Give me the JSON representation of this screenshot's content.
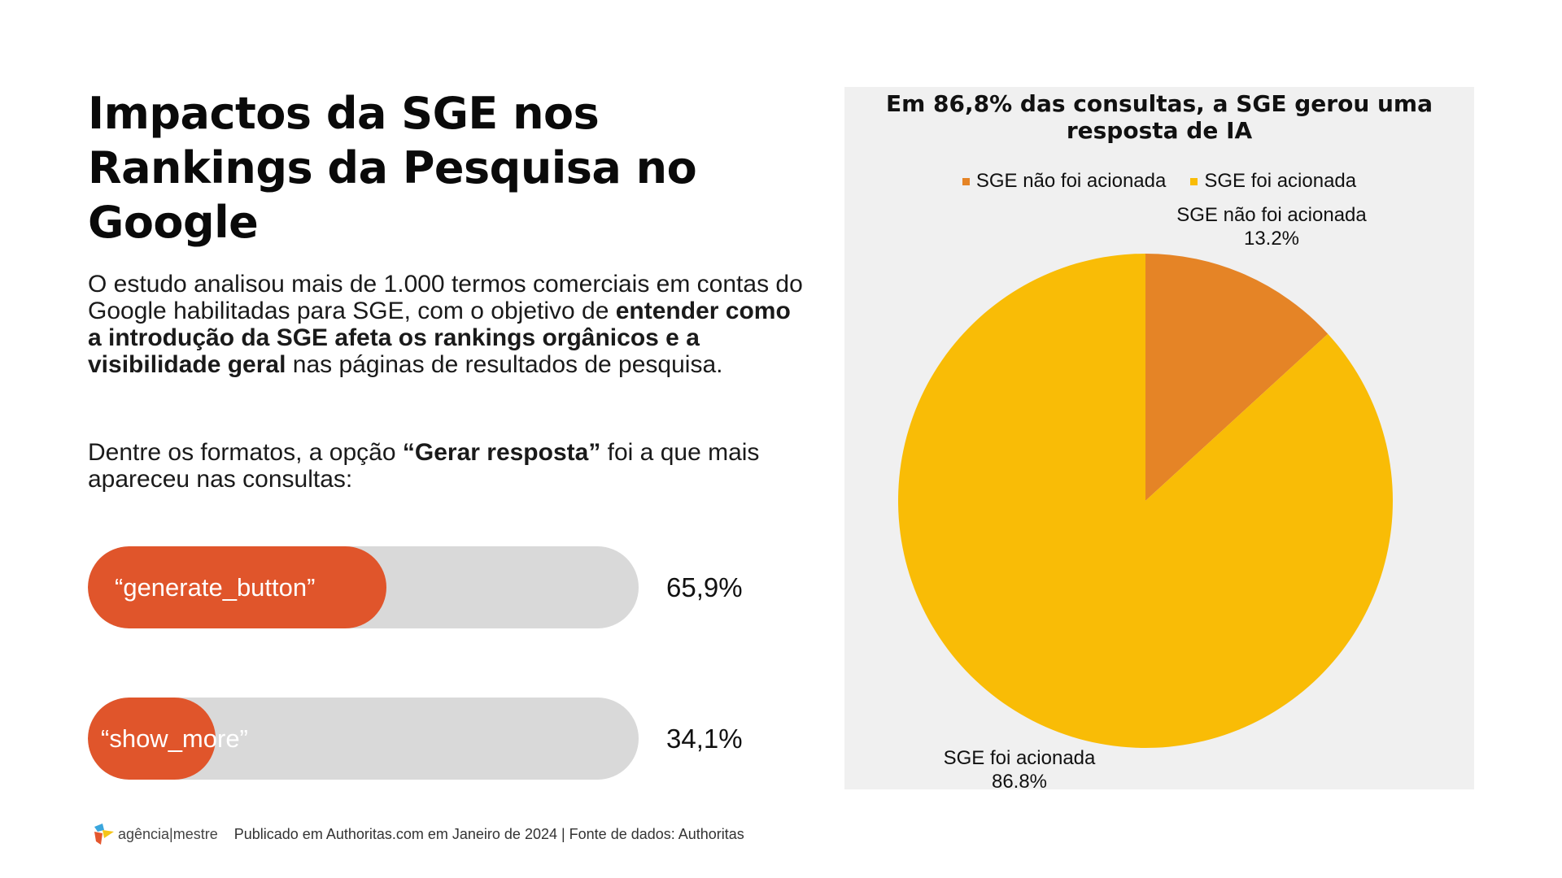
{
  "header": {
    "title": "Impactos da SGE nos Rankings da Pesquisa no Google"
  },
  "intro": {
    "part1": "O estudo analisou mais de 1.000 termos comerciais em contas do Google habilitadas para SGE, com o objetivo de ",
    "bold": "entender como a introdução da SGE afeta os rankings orgânicos e a visibilidade geral",
    "part2": " nas páginas de resultados de pesquisa."
  },
  "formats": {
    "part1": "Dentre os formatos, a opção ",
    "bold": "“Gerar resposta”",
    "part2": " foi a que mais apareceu nas consultas:"
  },
  "bars": [
    {
      "label": "“generate_button”",
      "value_text": "65,9%",
      "value": 65.9
    },
    {
      "label": "“show_more”",
      "value_text": "34,1%",
      "value": 34.1
    }
  ],
  "colors": {
    "bar_fill": "#e0552b",
    "bar_track": "#d9d9d9",
    "slice_not_triggered": "#e58426",
    "slice_triggered": "#f9bc06",
    "panel_bg": "#f0f0f0"
  },
  "chart_data": {
    "type": "pie",
    "title": "Em 86,8% das consultas, a SGE gerou uma resposta de IA",
    "legend_position": "top",
    "series": [
      {
        "name": "SGE não foi acionada",
        "value": 13.2,
        "label": "13.2%"
      },
      {
        "name": "SGE foi acionada",
        "value": 86.8,
        "label": "86.8%"
      }
    ]
  },
  "footer": {
    "logo_text": "agência|mestre",
    "credit": "Publicado em Authoritas.com em Janeiro de 2024 | Fonte de dados: Authoritas"
  }
}
